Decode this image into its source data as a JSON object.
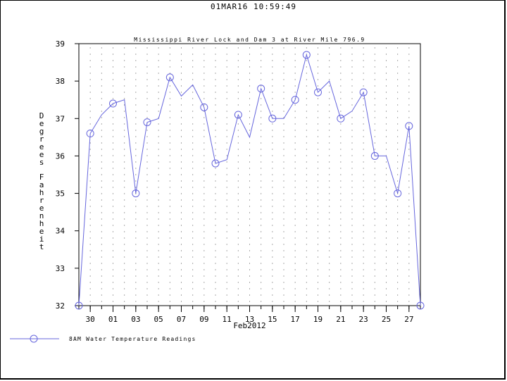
{
  "timestamp": "01MAR16  10:59:49",
  "chart_data": {
    "type": "line",
    "title": "Mississippi River Lock and Dam 3 at River Mile 796.9",
    "xlabel": "Feb2012",
    "ylabel": "Degrees Fahrenheit",
    "ylim": [
      32,
      39
    ],
    "yticks": [
      32,
      33,
      34,
      35,
      36,
      37,
      38,
      39
    ],
    "xlim": [
      "2012-01-29",
      "2012-02-28"
    ],
    "x_tick_labels": [
      "30",
      "01",
      "03",
      "05",
      "07",
      "09",
      "11",
      "13",
      "15",
      "17",
      "19",
      "21",
      "23",
      "25",
      "27"
    ],
    "grid": true,
    "legend_position": "bottom-left",
    "line_color": "#6666dd",
    "series": [
      {
        "name": "8AM Water Temperature Readings",
        "line": [
          {
            "x": "2012-01-29",
            "y": 32.0
          },
          {
            "x": "2012-01-30",
            "y": 36.6
          },
          {
            "x": "2012-01-31",
            "y": 37.1
          },
          {
            "x": "2012-02-01",
            "y": 37.4
          },
          {
            "x": "2012-02-02",
            "y": 37.5
          },
          {
            "x": "2012-02-03",
            "y": 35.0
          },
          {
            "x": "2012-02-04",
            "y": 36.9
          },
          {
            "x": "2012-02-05",
            "y": 37.0
          },
          {
            "x": "2012-02-06",
            "y": 38.1
          },
          {
            "x": "2012-02-07",
            "y": 37.6
          },
          {
            "x": "2012-02-08",
            "y": 37.9
          },
          {
            "x": "2012-02-09",
            "y": 37.3
          },
          {
            "x": "2012-02-10",
            "y": 35.8
          },
          {
            "x": "2012-02-11",
            "y": 35.9
          },
          {
            "x": "2012-02-12",
            "y": 37.1
          },
          {
            "x": "2012-02-13",
            "y": 36.5
          },
          {
            "x": "2012-02-14",
            "y": 37.8
          },
          {
            "x": "2012-02-15",
            "y": 37.0
          },
          {
            "x": "2012-02-16",
            "y": 37.0
          },
          {
            "x": "2012-02-17",
            "y": 37.5
          },
          {
            "x": "2012-02-18",
            "y": 38.7
          },
          {
            "x": "2012-02-19",
            "y": 37.7
          },
          {
            "x": "2012-02-20",
            "y": 38.0
          },
          {
            "x": "2012-02-21",
            "y": 37.0
          },
          {
            "x": "2012-02-22",
            "y": 37.2
          },
          {
            "x": "2012-02-23",
            "y": 37.7
          },
          {
            "x": "2012-02-24",
            "y": 36.0
          },
          {
            "x": "2012-02-25",
            "y": 36.0
          },
          {
            "x": "2012-02-26",
            "y": 35.0
          },
          {
            "x": "2012-02-27",
            "y": 36.8
          },
          {
            "x": "2012-02-28",
            "y": 32.0
          }
        ],
        "markers": [
          {
            "x": "2012-01-29",
            "y": 32.0
          },
          {
            "x": "2012-01-30",
            "y": 36.6
          },
          {
            "x": "2012-02-01",
            "y": 37.4
          },
          {
            "x": "2012-02-03",
            "y": 35.0
          },
          {
            "x": "2012-02-04",
            "y": 36.9
          },
          {
            "x": "2012-02-06",
            "y": 38.1
          },
          {
            "x": "2012-02-09",
            "y": 37.3
          },
          {
            "x": "2012-02-10",
            "y": 35.8
          },
          {
            "x": "2012-02-12",
            "y": 37.1
          },
          {
            "x": "2012-02-14",
            "y": 37.8
          },
          {
            "x": "2012-02-15",
            "y": 37.0
          },
          {
            "x": "2012-02-17",
            "y": 37.5
          },
          {
            "x": "2012-02-18",
            "y": 38.7
          },
          {
            "x": "2012-02-19",
            "y": 37.7
          },
          {
            "x": "2012-02-21",
            "y": 37.0
          },
          {
            "x": "2012-02-23",
            "y": 37.7
          },
          {
            "x": "2012-02-24",
            "y": 36.0
          },
          {
            "x": "2012-02-26",
            "y": 35.0
          },
          {
            "x": "2012-02-27",
            "y": 36.8
          },
          {
            "x": "2012-02-28",
            "y": 32.0
          }
        ]
      }
    ]
  }
}
